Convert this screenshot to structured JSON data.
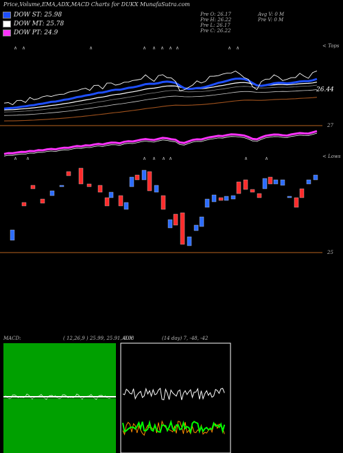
{
  "header": {
    "title": "Price,Volume,EMA,ADX,MACD Charts for DUKX  MunafaSutra.com"
  },
  "legend": [
    {
      "label": "DOW ST: 25.98",
      "color": "#1e4fff"
    },
    {
      "label": "DOW MT: 25.78",
      "color": "#ffffff"
    },
    {
      "label": "DOW PT: 24.9",
      "color": "#ff33ff"
    }
  ],
  "info": {
    "pre_o": "Pre  O: 26.17",
    "pre_h": "Pre  H: 26.22",
    "pre_l": "Pre  L: 26.17",
    "pre_c": "Pre  C: 26.22",
    "avg_v": "Avg V: 0  M",
    "pre_v": "Pre  V: 0  M"
  },
  "price_panel": {
    "right_label_top": "< Tops",
    "last_price_label": "26.44",
    "level_label": "27"
  },
  "volume_panel": {
    "right_label_top": "< Lows",
    "level_label": "25"
  },
  "macd": {
    "label": "MACD:",
    "params": "( 12,26,9 ) 25.99,  25.91,  0.08"
  },
  "adx": {
    "label": "ADX",
    "params": "(14  day) 7,  -48,  -42"
  },
  "chart_data": {
    "type": "line",
    "price": {
      "close": [
        25.55,
        25.6,
        25.58,
        25.62,
        25.66,
        25.64,
        25.7,
        25.68,
        25.74,
        25.72,
        25.78,
        25.8,
        25.76,
        25.82,
        25.86,
        25.84,
        25.9,
        25.95,
        25.92,
        25.98,
        25.96,
        26.02,
        26.06,
        26.0,
        26.08,
        26.12,
        26.1,
        26.05,
        26.14,
        26.18,
        26.15,
        26.2,
        26.26,
        26.3,
        26.24,
        26.2,
        26.28,
        26.34,
        26.3,
        26.22,
        26.16,
        25.95,
        25.9,
        26.0,
        26.1,
        26.14,
        26.12,
        26.2,
        26.26,
        26.3,
        26.35,
        26.32,
        26.38,
        26.42,
        26.4,
        26.36,
        26.3,
        26.18,
        26.02,
        25.98,
        26.12,
        26.22,
        26.26,
        26.3,
        26.28,
        26.22,
        26.18,
        26.26,
        26.3,
        26.34,
        26.3,
        26.28,
        26.36,
        26.44
      ],
      "ema_st": 25.98,
      "ema_mt": 25.78,
      "ema_pt": 24.9
    },
    "volume_candles": "up/down open-close boxes per session, shown on a lows scale"
  }
}
